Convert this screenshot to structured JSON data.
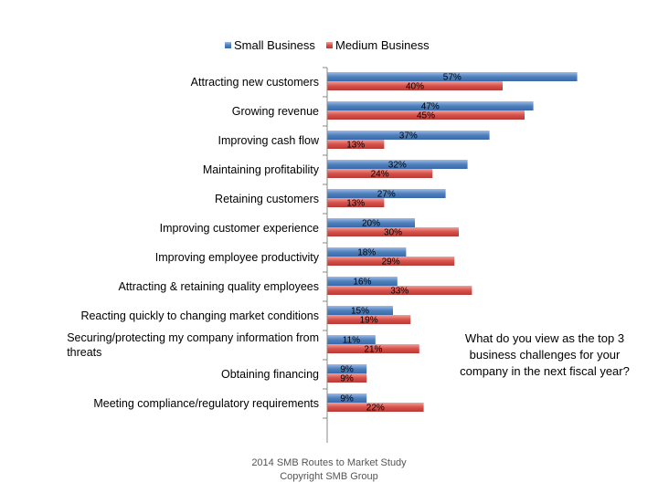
{
  "chart_data": {
    "type": "bar",
    "orientation": "horizontal",
    "categories": [
      "Attracting new customers",
      "Growing revenue",
      "Improving cash flow",
      "Maintaining profitability",
      "Retaining customers",
      "Improving customer experience",
      "Improving employee productivity",
      "Attracting & retaining quality employees",
      "Reacting quickly to changing market conditions",
      "Securing/protecting my company information from threats",
      "Obtaining financing",
      "Meeting compliance/regulatory requirements"
    ],
    "series": [
      {
        "name": "Small Business",
        "color": "#4f81bd",
        "values": [
          57,
          47,
          37,
          32,
          27,
          20,
          18,
          16,
          15,
          11,
          9,
          9
        ]
      },
      {
        "name": "Medium Business",
        "color": "#d9504a",
        "values": [
          40,
          45,
          13,
          24,
          13,
          30,
          29,
          33,
          19,
          21,
          9,
          22
        ]
      }
    ],
    "value_suffix": "%",
    "xlim": [
      0,
      57
    ],
    "grid": false,
    "legend_position": "top"
  },
  "annotation": "What do you view as the top 3 business challenges for your company in the next fiscal year?",
  "footer": {
    "line1": "2014 SMB Routes to Market Study",
    "line2": "Copyright SMB Group"
  }
}
